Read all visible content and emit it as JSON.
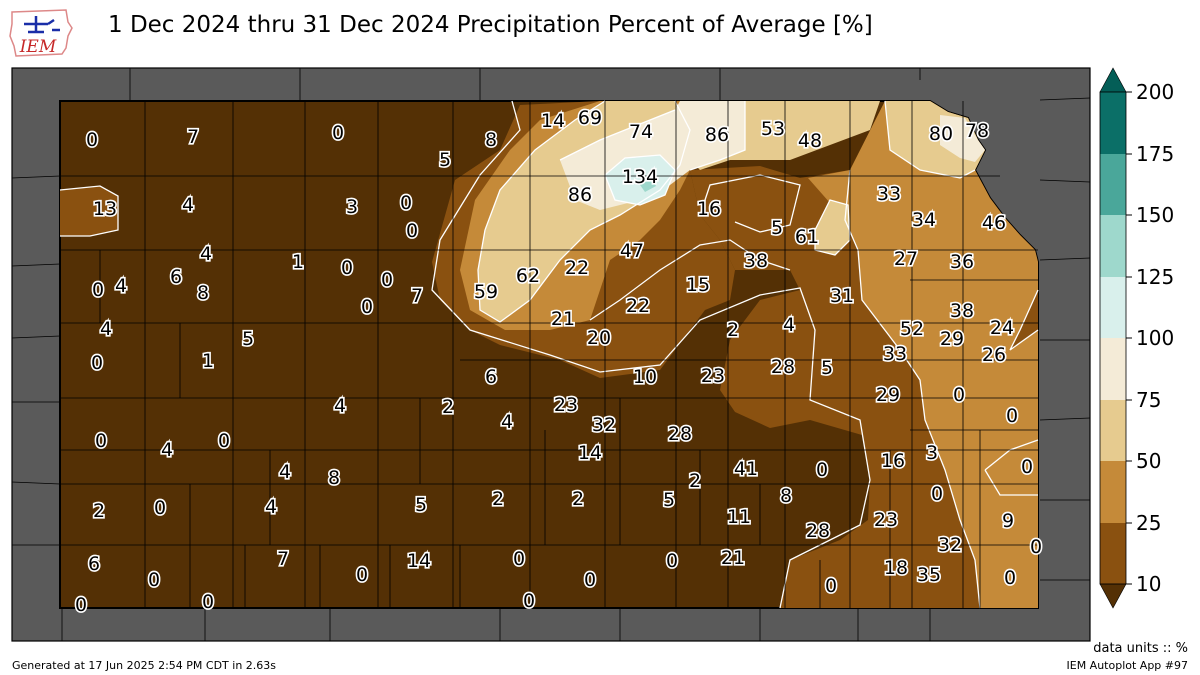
{
  "title": "1 Dec 2024 thru 31 Dec 2024 Precipitation Percent of Average [%]",
  "logo_text": "IEM",
  "units_label": "data units :: %",
  "generated": "Generated at 17 Jun 2025 2:54 PM CDT in 2.63s",
  "app_label": "IEM Autoplot App #97",
  "colorbar": {
    "ticks": [
      "200",
      "175",
      "150",
      "125",
      "100",
      "75",
      "50",
      "25",
      "10"
    ],
    "colors": [
      "#045e57",
      "#0b6f67",
      "#4aa79a",
      "#9ed8cc",
      "#d9f0ec",
      "#f4ebd7",
      "#e6cb8f",
      "#c58a39",
      "#8a5110",
      "#543005"
    ]
  },
  "colors": {
    "background_map": "#5a5a5a",
    "dark_brown": "#543005",
    "brown": "#8a5110",
    "tan": "#c58a39",
    "light_tan": "#e6cb8f",
    "cream": "#f4ebd7",
    "pale_teal": "#d9f0ec",
    "teal": "#9ed8cc"
  },
  "county_values": [
    "0",
    "7",
    "0",
    "5",
    "8",
    "14",
    "69",
    "74",
    "86",
    "53",
    "48",
    "80",
    "78",
    "13",
    "4",
    "3",
    "0",
    "0",
    "86",
    "134",
    "16",
    "33",
    "34",
    "46",
    "4",
    "1",
    "0",
    "0",
    "62",
    "22",
    "47",
    "5",
    "61",
    "38",
    "27",
    "36",
    "0",
    "4",
    "6",
    "8",
    "7",
    "59",
    "15",
    "31",
    "38",
    "24",
    "4",
    "0",
    "21",
    "22",
    "2",
    "4",
    "52",
    "29",
    "26",
    "20",
    "33",
    "0",
    "1",
    "5",
    "6",
    "10",
    "23",
    "28",
    "5",
    "2",
    "23",
    "29",
    "0",
    "4",
    "32",
    "0",
    "0",
    "4",
    "0",
    "4",
    "14",
    "28",
    "16",
    "3",
    "0",
    "4",
    "8",
    "2",
    "41",
    "0",
    "0",
    "2",
    "0",
    "4",
    "5",
    "2",
    "5",
    "8",
    "2",
    "11",
    "23",
    "9",
    "28",
    "32",
    "0",
    "6",
    "7",
    "0",
    "0",
    "14",
    "18",
    "35",
    "0",
    "0",
    "0",
    "0",
    "0",
    "21",
    "0",
    "0",
    "0"
  ]
}
